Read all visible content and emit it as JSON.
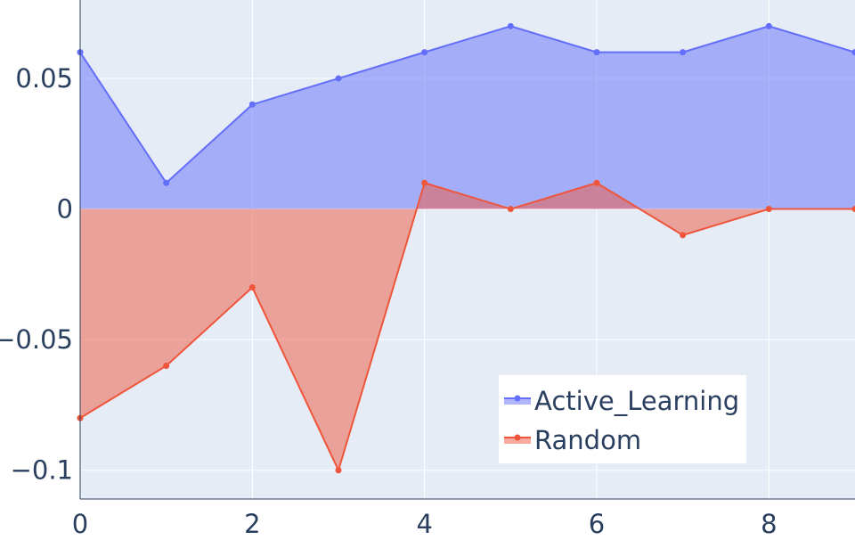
{
  "chart_data": {
    "type": "area",
    "x": [
      0,
      1,
      2,
      3,
      4,
      5,
      6,
      7,
      8,
      9
    ],
    "series": [
      {
        "name": "Active_Learning",
        "values": [
          0.06,
          0.01,
          0.04,
          0.05,
          0.06,
          0.07,
          0.06,
          0.06,
          0.07,
          0.06
        ],
        "color": "#636efa",
        "fill": "rgba(99,110,250,0.5)"
      },
      {
        "name": "Random",
        "values": [
          -0.08,
          -0.06,
          -0.03,
          -0.1,
          0.01,
          0.0,
          0.01,
          -0.01,
          0.0,
          0.0
        ],
        "color": "#ef553b",
        "fill": "rgba(239,85,59,0.5)"
      }
    ],
    "fill_to": "zero",
    "xlim": [
      0,
      9
    ],
    "ylim": [
      -0.111,
      0.08
    ],
    "x_ticks": [
      0,
      2,
      4,
      6,
      8
    ],
    "x_tick_labels": [
      "0",
      "2",
      "4",
      "6",
      "8"
    ],
    "y_ticks": [
      -0.1,
      -0.05,
      0,
      0.05
    ],
    "y_tick_labels": [
      "−0.1",
      "−0.05",
      "0",
      "0.05"
    ],
    "grid": true,
    "plot_background": "#e5ecf6",
    "legend_position": "bottom-right",
    "title": "",
    "xlabel": "",
    "ylabel": ""
  }
}
